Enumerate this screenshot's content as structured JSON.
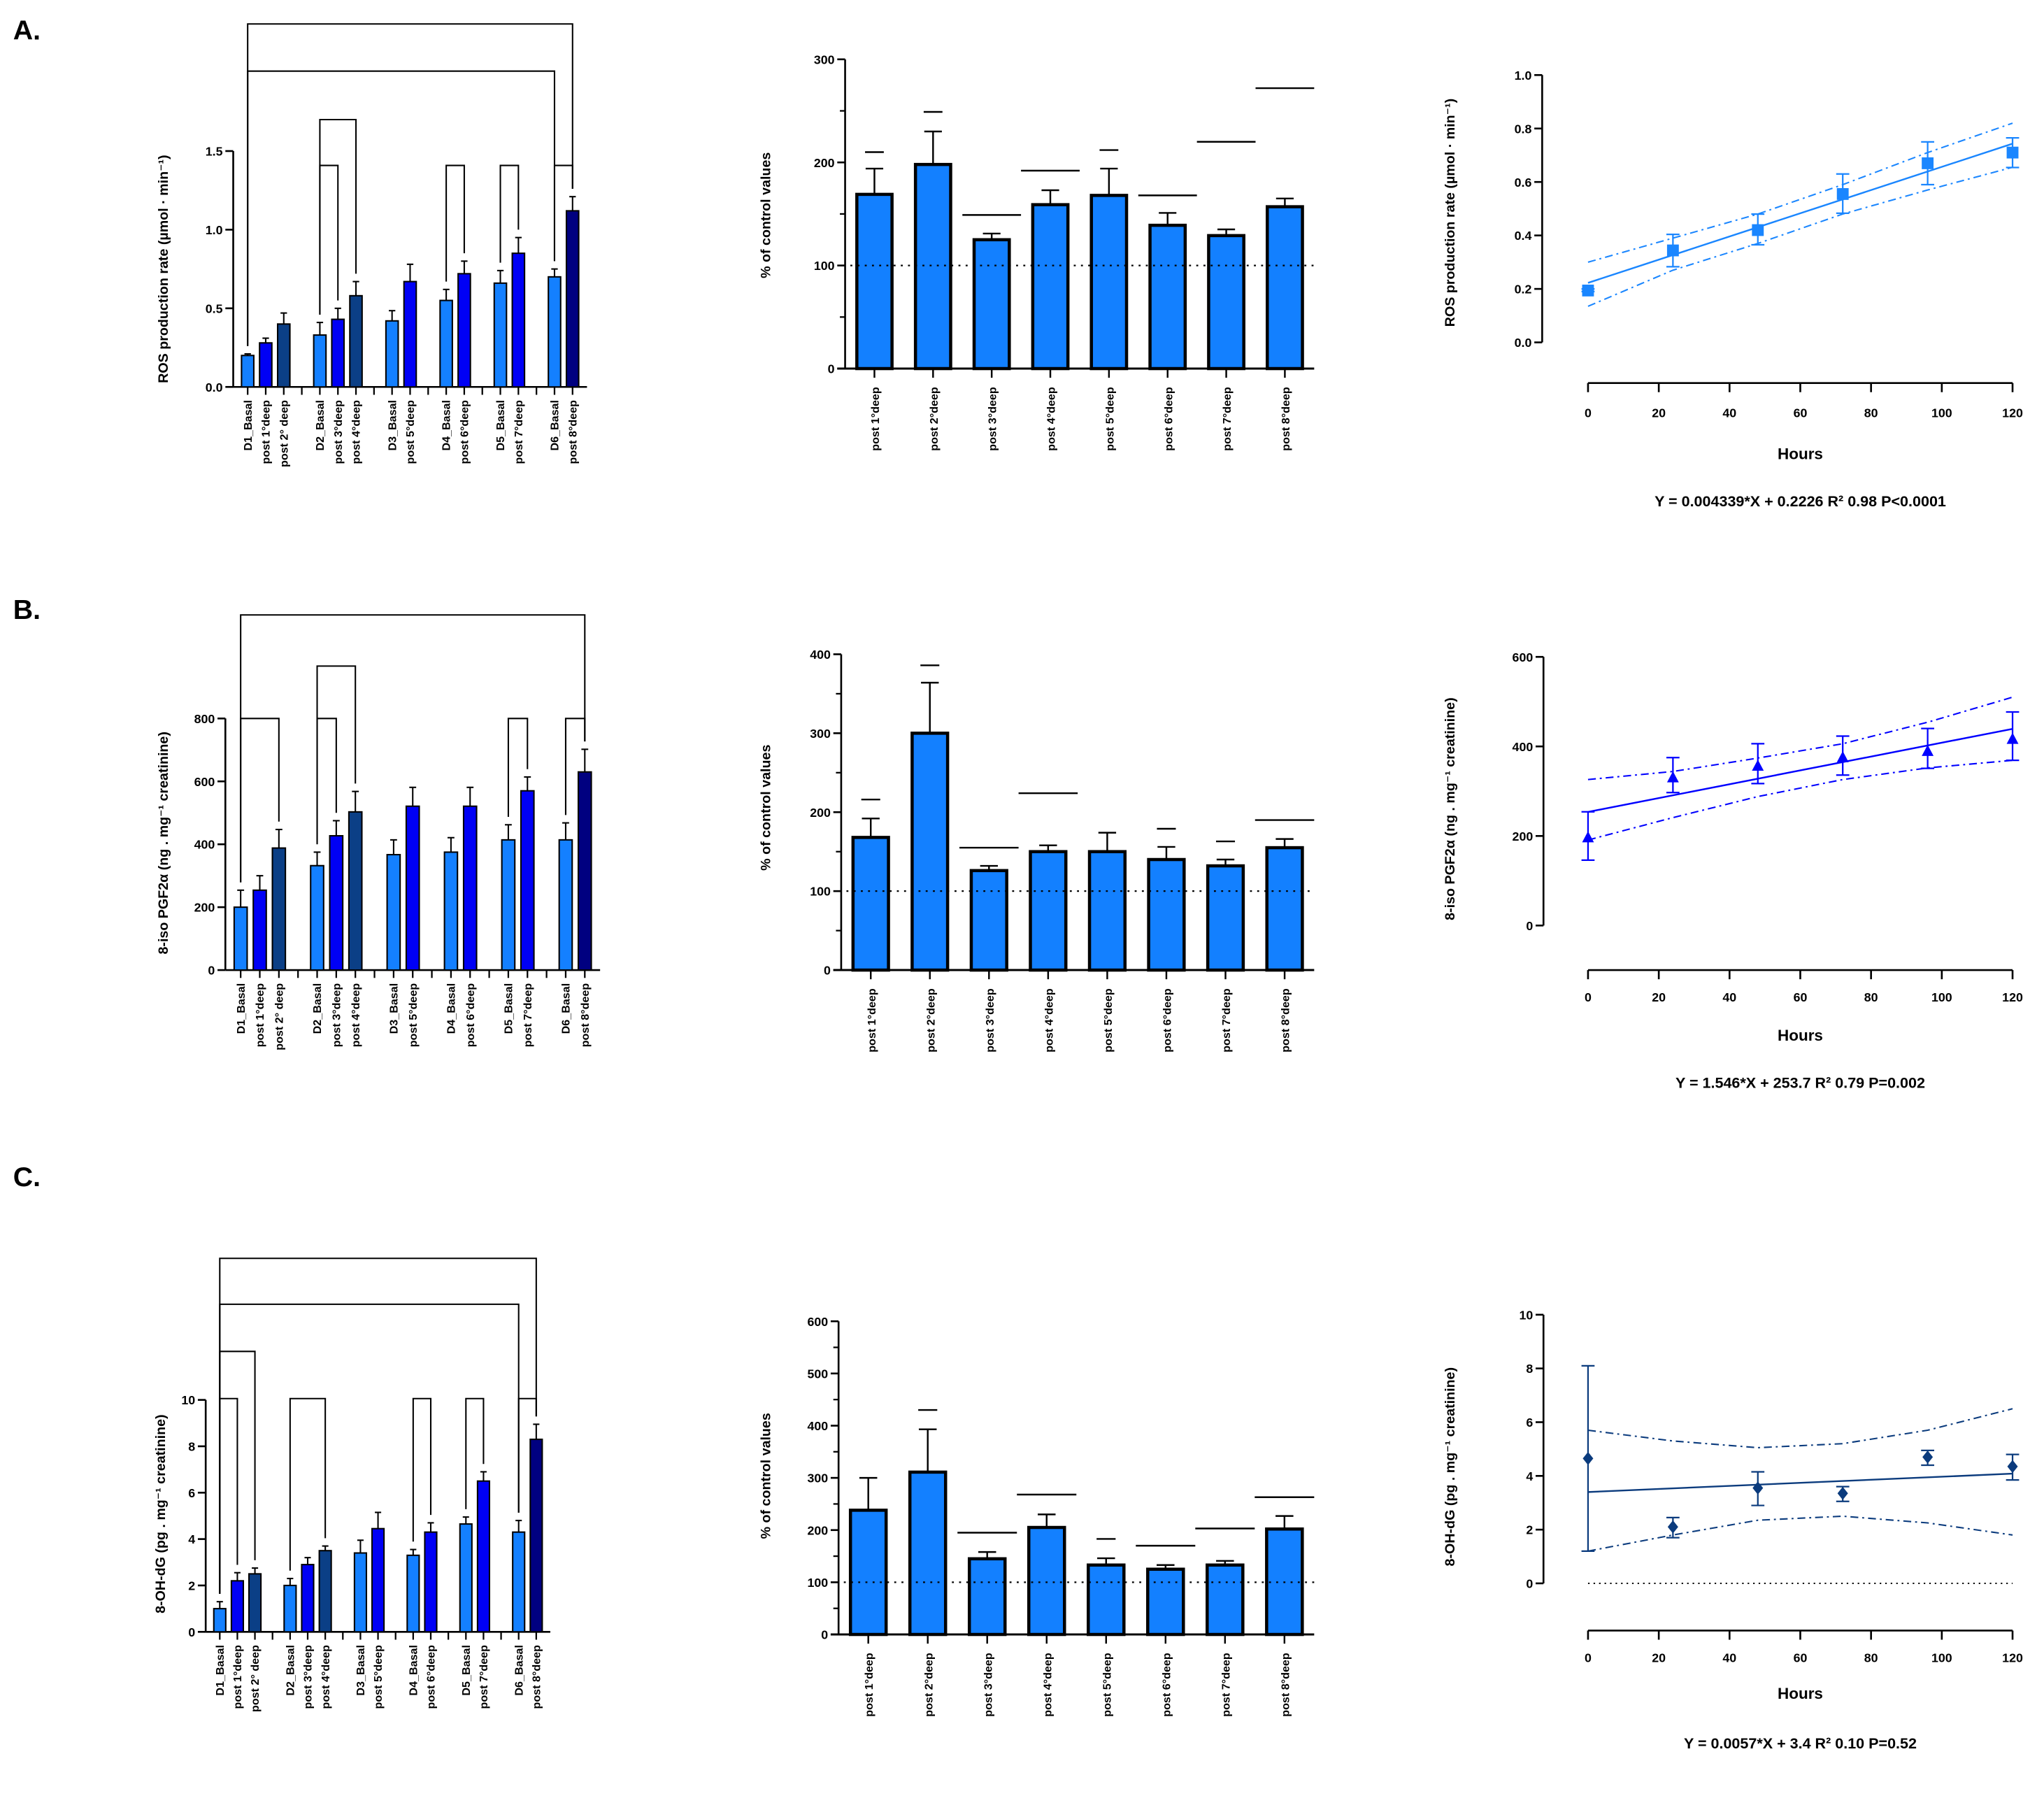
{
  "panels": [
    "A.",
    "B.",
    "C."
  ],
  "chart_data": [
    {
      "type": "bar",
      "panel": "A",
      "ylabel": "ROS production rate (µmol · min⁻¹)",
      "yticks": [
        "0.0",
        "0.5",
        "1.0",
        "1.5"
      ],
      "ylim": [
        0,
        1.5
      ],
      "groups": [
        {
          "bars": [
            {
              "label": "D1_Basal",
              "value": 0.2,
              "error": 0.01,
              "color": "#1480ff"
            },
            {
              "label": "post 1°deep",
              "value": 0.28,
              "error": 0.03,
              "color": "#0000f5"
            },
            {
              "label": "post 2° deep",
              "value": 0.4,
              "error": 0.07,
              "color": "#0b3f86"
            }
          ]
        },
        {
          "bars": [
            {
              "label": "D2_Basal",
              "value": 0.33,
              "error": 0.08,
              "color": "#1480ff"
            },
            {
              "label": "post 3°deep",
              "value": 0.43,
              "error": 0.07,
              "color": "#0000f5"
            },
            {
              "label": "post 4°deep",
              "value": 0.58,
              "error": 0.09,
              "color": "#0b3f86"
            }
          ]
        },
        {
          "bars": [
            {
              "label": "D3_Basal",
              "value": 0.42,
              "error": 0.065,
              "color": "#1480ff"
            },
            {
              "label": "post 5°deep",
              "value": 0.67,
              "error": 0.11,
              "color": "#0000f5"
            }
          ]
        },
        {
          "bars": [
            {
              "label": "D4_Basal",
              "value": 0.55,
              "error": 0.07,
              "color": "#1480ff"
            },
            {
              "label": "post 6°deep",
              "value": 0.72,
              "error": 0.08,
              "color": "#0000f5"
            }
          ]
        },
        {
          "bars": [
            {
              "label": "D5_Basal",
              "value": 0.66,
              "error": 0.08,
              "color": "#1480ff"
            },
            {
              "label": "post 7°deep",
              "value": 0.85,
              "error": 0.1,
              "color": "#0000f5"
            }
          ]
        },
        {
          "bars": [
            {
              "label": "D6_Basal",
              "value": 0.7,
              "error": 0.05,
              "color": "#1480ff"
            },
            {
              "label": "post 8°deep",
              "value": 1.12,
              "error": 0.09,
              "color": "#000080"
            }
          ]
        }
      ],
      "brackets": [
        {
          "from": "D2_Basal",
          "to": "post 3°deep",
          "tier": 1
        },
        {
          "from": "D4_Basal",
          "to": "post 6°deep",
          "tier": 1
        },
        {
          "from": "D5_Basal",
          "to": "post 7°deep",
          "tier": 1
        },
        {
          "from": "D6_Basal",
          "to": "post 8°deep",
          "tier": 1
        },
        {
          "from": "D2_Basal",
          "to": "post 4°deep",
          "tier": 2
        },
        {
          "from": "D1_Basal",
          "to": "D6_Basal",
          "tier": 3
        },
        {
          "from": "D1_Basal",
          "to": "post 8°deep",
          "tier": 4
        }
      ]
    },
    {
      "type": "bar",
      "panel": "A",
      "ylabel": "% of control values",
      "yticks": [
        "0",
        "100",
        "200",
        "300"
      ],
      "ylim": [
        0,
        300
      ],
      "reference_line": 100,
      "color": "#1380ff",
      "categories": [
        "post 1°deep",
        "post 2°deep",
        "post 3°deep",
        "post 4°deep",
        "post 5°deep",
        "post 6°deep",
        "post 7°deep",
        "post 8°deep"
      ],
      "values": [
        169,
        198,
        125,
        159,
        168,
        139,
        129,
        157
      ],
      "errors": [
        25,
        32,
        6,
        14,
        26,
        12,
        6,
        8
      ],
      "markers": [
        {
          "value": 210,
          "wide": false
        },
        {
          "value": 249,
          "wide": false
        },
        {
          "value": 149,
          "wide": true
        },
        {
          "value": 192,
          "wide": true
        },
        {
          "value": 212,
          "wide": false
        },
        {
          "value": 168,
          "wide": true
        },
        {
          "value": 220,
          "wide": true
        },
        {
          "value": 272,
          "wide": true
        }
      ]
    },
    {
      "type": "scatter",
      "panel": "A",
      "ylabel": "ROS production rate (µmol · min⁻¹)",
      "xlabel": "Hours",
      "yticks": [
        "0.0",
        "0.2",
        "0.4",
        "0.6",
        "0.8",
        "1.0"
      ],
      "ylim": [
        0,
        1.0
      ],
      "xticks": [
        "0",
        "20",
        "40",
        "60",
        "80",
        "100",
        "120"
      ],
      "xlim": [
        0,
        120
      ],
      "marker": "square",
      "color": "#1a86ff",
      "x": [
        0,
        24,
        48,
        72,
        96,
        120
      ],
      "y": [
        0.194,
        0.344,
        0.42,
        0.555,
        0.67,
        0.71
      ],
      "error_low": [
        0.19,
        0.283,
        0.365,
        0.483,
        0.59,
        0.654
      ],
      "error_high": [
        0.2,
        0.404,
        0.48,
        0.63,
        0.75,
        0.765
      ],
      "fit": {
        "slope": 0.004339,
        "intercept": 0.2226
      },
      "ci_upper": [
        0.3,
        0.39,
        0.48,
        0.59,
        0.71,
        0.82
      ],
      "ci_lower": [
        0.135,
        0.27,
        0.37,
        0.48,
        0.57,
        0.655
      ],
      "zero_line": false,
      "equation": "Y = 0.004339*X + 0.2226 R² 0.98 P<0.0001"
    },
    {
      "type": "bar",
      "panel": "B",
      "ylabel": "8-iso PGF2α (ng . mg⁻¹ creatinine)",
      "yticks": [
        "0",
        "200",
        "400",
        "600",
        "800"
      ],
      "ylim": [
        0,
        800
      ],
      "groups": [
        {
          "bars": [
            {
              "label": "D1_Basal",
              "value": 200,
              "error": 54,
              "color": "#1480ff"
            },
            {
              "label": "post 1°deep",
              "value": 254,
              "error": 46,
              "color": "#0000f5"
            },
            {
              "label": "post 2° deep",
              "value": 388,
              "error": 59,
              "color": "#0b3f86"
            }
          ]
        },
        {
          "bars": [
            {
              "label": "D2_Basal",
              "value": 332,
              "error": 43,
              "color": "#1480ff"
            },
            {
              "label": "post 3°deep",
              "value": 427,
              "error": 48,
              "color": "#0000f5"
            },
            {
              "label": "post 4°deep",
              "value": 503,
              "error": 65,
              "color": "#0b3f86"
            }
          ]
        },
        {
          "bars": [
            {
              "label": "D3_Basal",
              "value": 367,
              "error": 47,
              "color": "#1480ff"
            },
            {
              "label": "post 5°deep",
              "value": 521,
              "error": 60,
              "color": "#0000f5"
            }
          ]
        },
        {
          "bars": [
            {
              "label": "D4_Basal",
              "value": 375,
              "error": 46,
              "color": "#1480ff"
            },
            {
              "label": "post 6°deep",
              "value": 521,
              "error": 60,
              "color": "#0000f5"
            }
          ]
        },
        {
          "bars": [
            {
              "label": "D5_Basal",
              "value": 414,
              "error": 48,
              "color": "#1480ff"
            },
            {
              "label": "post 7°deep",
              "value": 570,
              "error": 44,
              "color": "#0000f5"
            }
          ]
        },
        {
          "bars": [
            {
              "label": "D6_Basal",
              "value": 414,
              "error": 54,
              "color": "#1480ff"
            },
            {
              "label": "post 8°deep",
              "value": 630,
              "error": 72,
              "color": "#000080"
            }
          ]
        }
      ],
      "brackets": [
        {
          "from": "D1_Basal",
          "to": "post 2° deep",
          "tier": 1
        },
        {
          "from": "D2_Basal",
          "to": "post 3°deep",
          "tier": 1
        },
        {
          "from": "D5_Basal",
          "to": "post 7°deep",
          "tier": 1
        },
        {
          "from": "D6_Basal",
          "to": "post 8°deep",
          "tier": 1
        },
        {
          "from": "D2_Basal",
          "to": "post 4°deep",
          "tier": 2
        },
        {
          "from": "D1_Basal",
          "to": "post 8°deep",
          "tier": 3
        }
      ]
    },
    {
      "type": "bar",
      "panel": "B",
      "ylabel": "% of control values",
      "yticks": [
        "0",
        "100",
        "200",
        "300",
        "400"
      ],
      "ylim": [
        0,
        400
      ],
      "reference_line": 100,
      "color": "#1380ff",
      "categories": [
        "post 1°deep",
        "post 2°deep",
        "post 3°deep",
        "post 4°deep",
        "post 5°deep",
        "post 6°deep",
        "post 7°deep",
        "post 8°deep"
      ],
      "values": [
        168,
        300,
        126,
        150,
        150,
        140,
        132,
        155
      ],
      "errors": [
        24,
        64,
        6,
        8,
        24,
        16,
        8,
        11
      ],
      "markers": [
        {
          "value": 216,
          "wide": false
        },
        {
          "value": 386,
          "wide": false
        },
        {
          "value": 155,
          "wide": true
        },
        {
          "value": 224,
          "wide": true
        },
        null,
        {
          "value": 179,
          "wide": false
        },
        {
          "value": 163,
          "wide": false
        },
        {
          "value": 190,
          "wide": true
        }
      ]
    },
    {
      "type": "scatter",
      "panel": "B",
      "ylabel": "8-iso PGF2α (ng . mg⁻¹ creatinine)",
      "xlabel": "Hours",
      "yticks": [
        "0",
        "200",
        "400",
        "600"
      ],
      "ylim": [
        0,
        600
      ],
      "xticks": [
        "0",
        "20",
        "40",
        "60",
        "80",
        "100",
        "120"
      ],
      "xlim": [
        0,
        120
      ],
      "marker": "triangle",
      "color": "#0000ff",
      "x": [
        0,
        24,
        48,
        72,
        96,
        120
      ],
      "y": [
        196,
        330,
        356,
        375,
        389,
        416
      ],
      "error_low": [
        146,
        297,
        317,
        336,
        351,
        369
      ],
      "error_high": [
        254,
        375,
        406,
        423,
        440,
        477
      ],
      "fit": {
        "slope": 1.546,
        "intercept": 253.7
      },
      "ci_upper": [
        326,
        344,
        374,
        406,
        454,
        510
      ],
      "ci_lower": [
        191,
        241,
        288,
        326,
        352,
        369
      ],
      "zero_line": false,
      "equation": "Y = 1.546*X + 253.7 R² 0.79 P=0.002"
    },
    {
      "type": "bar",
      "panel": "C",
      "ylabel": "8-OH-dG (pg . mg⁻¹ creatinine)",
      "yticks": [
        "0",
        "2",
        "4",
        "6",
        "8",
        "10"
      ],
      "ylim": [
        0,
        10
      ],
      "groups": [
        {
          "bars": [
            {
              "label": "D1_Basal",
              "value": 1.0,
              "error": 0.3,
              "color": "#1480ff"
            },
            {
              "label": "post 1°deep",
              "value": 2.2,
              "error": 0.35,
              "color": "#0000f5"
            },
            {
              "label": "post 2° deep",
              "value": 2.5,
              "error": 0.25,
              "color": "#0b3f86"
            }
          ]
        },
        {
          "bars": [
            {
              "label": "D2_Basal",
              "value": 2.0,
              "error": 0.3,
              "color": "#1480ff"
            },
            {
              "label": "post 3°deep",
              "value": 2.9,
              "error": 0.3,
              "color": "#0000f5"
            },
            {
              "label": "post 4°deep",
              "value": 3.5,
              "error": 0.2,
              "color": "#0b3f86"
            }
          ]
        },
        {
          "bars": [
            {
              "label": "D3_Basal",
              "value": 3.4,
              "error": 0.55,
              "color": "#1480ff"
            },
            {
              "label": "post 5°deep",
              "value": 4.45,
              "error": 0.7,
              "color": "#0000f5"
            }
          ]
        },
        {
          "bars": [
            {
              "label": "D4_Basal",
              "value": 3.3,
              "error": 0.25,
              "color": "#1480ff"
            },
            {
              "label": "post 6°deep",
              "value": 4.3,
              "error": 0.4,
              "color": "#0000f5"
            }
          ]
        },
        {
          "bars": [
            {
              "label": "D5_Basal",
              "value": 4.65,
              "error": 0.3,
              "color": "#1480ff"
            },
            {
              "label": "post 7°deep",
              "value": 6.5,
              "error": 0.4,
              "color": "#0000f5"
            }
          ]
        },
        {
          "bars": [
            {
              "label": "D6_Basal",
              "value": 4.3,
              "error": 0.5,
              "color": "#1480ff"
            },
            {
              "label": "post 8°deep",
              "value": 8.3,
              "error": 0.65,
              "color": "#000080"
            }
          ]
        }
      ],
      "brackets": [
        {
          "from": "D1_Basal",
          "to": "post 1°deep",
          "tier": 1
        },
        {
          "from": "D2_Basal",
          "to": "post 4°deep",
          "tier": 1
        },
        {
          "from": "D4_Basal",
          "to": "post 6°deep",
          "tier": 1
        },
        {
          "from": "D5_Basal",
          "to": "post 7°deep",
          "tier": 1
        },
        {
          "from": "D6_Basal",
          "to": "post 8°deep",
          "tier": 1
        },
        {
          "from": "D1_Basal",
          "to": "post 2° deep",
          "tier": 2
        },
        {
          "from": "D1_Basal",
          "to": "D6_Basal",
          "tier": 3
        },
        {
          "from": "D1_Basal",
          "to": "post 8°deep",
          "tier": 4
        }
      ]
    },
    {
      "type": "bar",
      "panel": "C",
      "ylabel": "% of control values",
      "yticks": [
        "0",
        "100",
        "200",
        "300",
        "400",
        "500",
        "600"
      ],
      "ylim": [
        0,
        600
      ],
      "reference_line": 100,
      "color": "#1380ff",
      "categories": [
        "post 1°deep",
        "post 2°deep",
        "post 3°deep",
        "post 4°deep",
        "post 5°deep",
        "post 6°deep",
        "post 7°deep",
        "post 8°deep"
      ],
      "values": [
        238,
        311,
        145,
        205,
        133,
        125,
        133,
        202
      ],
      "errors": [
        62,
        82,
        13,
        25,
        13,
        8,
        8,
        25
      ],
      "markers": [
        null,
        {
          "value": 430,
          "wide": false
        },
        {
          "value": 195,
          "wide": true
        },
        {
          "value": 268,
          "wide": true
        },
        {
          "value": 183,
          "wide": false
        },
        {
          "value": 170,
          "wide": true
        },
        {
          "value": 203,
          "wide": true
        },
        {
          "value": 263,
          "wide": true
        }
      ]
    },
    {
      "type": "scatter",
      "panel": "C",
      "ylabel": "8-OH-dG (pg . mg⁻¹ creatinine)",
      "xlabel": "Hours",
      "yticks": [
        "0",
        "2",
        "4",
        "6",
        "8",
        "10"
      ],
      "ylim": [
        0,
        10
      ],
      "xticks": [
        "0",
        "20",
        "40",
        "60",
        "80",
        "100",
        "120"
      ],
      "xlim": [
        0,
        120
      ],
      "marker": "diamond",
      "color": "#0b3b7d",
      "x": [
        0,
        24,
        48,
        72,
        96,
        120
      ],
      "y": [
        4.65,
        2.1,
        3.55,
        3.35,
        4.7,
        4.35
      ],
      "error_low": [
        1.2,
        1.7,
        2.9,
        3.05,
        4.4,
        3.85
      ],
      "error_high": [
        8.1,
        2.45,
        4.15,
        3.6,
        4.95,
        4.8
      ],
      "fit": {
        "slope": 0.0057,
        "intercept": 3.4
      },
      "ci_upper": [
        5.7,
        5.3,
        5.05,
        5.2,
        5.7,
        6.5
      ],
      "ci_lower": [
        1.2,
        1.8,
        2.35,
        2.5,
        2.25,
        1.8
      ],
      "zero_line": true,
      "equation": "Y = 0.0057*X + 3.4 R² 0.10 P=0.52"
    }
  ]
}
